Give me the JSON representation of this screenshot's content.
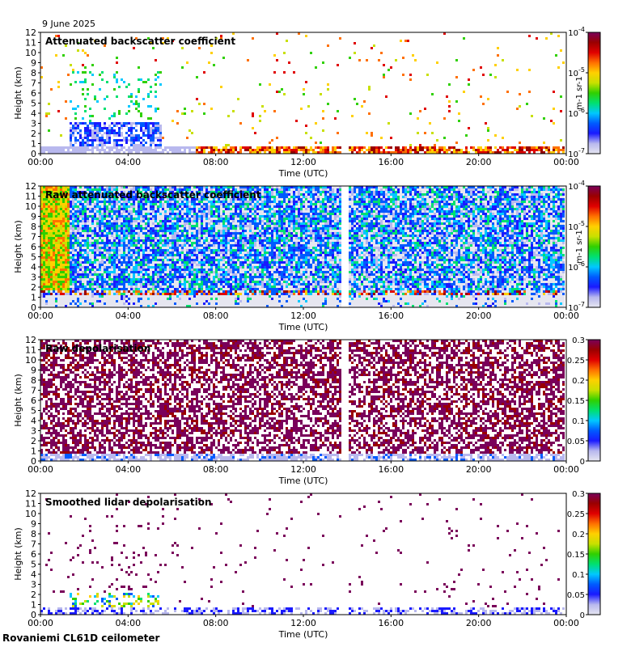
{
  "date": "9 June 2025",
  "footer": "Rovaniemi CL61D ceilometer",
  "colors": {
    "jet": [
      "#e6e6f0",
      "#b8b8ee",
      "#1a1aff",
      "#005aff",
      "#00c8ff",
      "#00e070",
      "#30d000",
      "#c8e000",
      "#ffd000",
      "#ff7000",
      "#e00000",
      "#9a0000",
      "#7a005a"
    ],
    "gap": "#ffffff"
  },
  "chart_data": [
    {
      "type": "heatmap",
      "title": "Attenuated backscatter coefficient",
      "xlabel": "Time (UTC)",
      "ylabel": "Height (km)",
      "xticks": [
        "00:00",
        "04:00",
        "08:00",
        "12:00",
        "16:00",
        "20:00",
        "00:00"
      ],
      "xlim_hours": [
        0,
        24
      ],
      "yticks": [
        "0",
        "1",
        "2",
        "3",
        "4",
        "5",
        "6",
        "7",
        "8",
        "9",
        "10",
        "11",
        "12"
      ],
      "ylim": [
        0,
        12
      ],
      "data_gap_hours": [
        13.75,
        14.0
      ],
      "colorbar": {
        "scale": "log",
        "ticks": [
          "10-7",
          "10-6",
          "10-5",
          "10-4"
        ],
        "min": 1e-07,
        "max": 0.0001,
        "unit": "m-1 sr-1"
      },
      "pattern": "sparse"
    },
    {
      "type": "heatmap",
      "title": "Raw attenuated backscatter coefficient",
      "xlabel": "Time (UTC)",
      "ylabel": "Height (km)",
      "xticks": [
        "00:00",
        "04:00",
        "08:00",
        "12:00",
        "16:00",
        "20:00",
        "00:00"
      ],
      "xlim_hours": [
        0,
        24
      ],
      "yticks": [
        "0",
        "1",
        "2",
        "3",
        "4",
        "5",
        "6",
        "7",
        "8",
        "9",
        "10",
        "11",
        "12"
      ],
      "ylim": [
        0,
        12
      ],
      "data_gap_hours": [
        13.75,
        14.0
      ],
      "colorbar": {
        "scale": "log",
        "ticks": [
          "10-7",
          "10-6",
          "10-5",
          "10-4"
        ],
        "min": 1e-07,
        "max": 0.0001,
        "unit": "m-1 sr-1"
      },
      "pattern": "dense-noise"
    },
    {
      "type": "heatmap",
      "title": "Raw depolarisation",
      "xlabel": "Time (UTC)",
      "ylabel": "Height (km)",
      "xticks": [
        "00:00",
        "04:00",
        "08:00",
        "12:00",
        "16:00",
        "20:00",
        "00:00"
      ],
      "xlim_hours": [
        0,
        24
      ],
      "yticks": [
        "0",
        "1",
        "2",
        "3",
        "4",
        "5",
        "6",
        "7",
        "8",
        "9",
        "10",
        "11",
        "12"
      ],
      "ylim": [
        0,
        12
      ],
      "data_gap_hours": [
        13.75,
        14.0
      ],
      "colorbar": {
        "scale": "linear",
        "ticks": [
          "0",
          "0.05",
          "0.1",
          "0.15",
          "0.2",
          "0.25",
          "0.3"
        ],
        "min": 0,
        "max": 0.3,
        "unit": ""
      },
      "pattern": "speckle"
    },
    {
      "type": "heatmap",
      "title": "Smoothed lidar depolarisation",
      "xlabel": "Time (UTC)",
      "ylabel": "Height (km)",
      "xticks": [
        "00:00",
        "04:00",
        "08:00",
        "12:00",
        "16:00",
        "20:00",
        "00:00"
      ],
      "xlim_hours": [
        0,
        24
      ],
      "yticks": [
        "0",
        "1",
        "2",
        "3",
        "4",
        "5",
        "6",
        "7",
        "8",
        "9",
        "10",
        "11",
        "12"
      ],
      "ylim": [
        0,
        12
      ],
      "data_gap_hours": [
        13.75,
        14.0
      ],
      "colorbar": {
        "scale": "linear",
        "ticks": [
          "0",
          "0.05",
          "0.1",
          "0.15",
          "0.2",
          "0.25",
          "0.3"
        ],
        "min": 0,
        "max": 0.3,
        "unit": ""
      },
      "pattern": "sparse-depol"
    }
  ]
}
